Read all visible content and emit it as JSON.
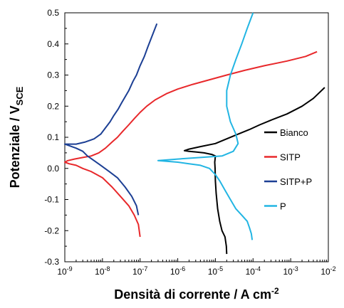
{
  "chart_data": {
    "type": "line",
    "xscale": "log",
    "xlim_exp": [
      -9,
      -2
    ],
    "ylim": [
      -0.3,
      0.5
    ],
    "ytick_values": [
      -0.3,
      -0.2,
      -0.1,
      0.0,
      0.1,
      0.2,
      0.3,
      0.4,
      0.5
    ],
    "ytick_labels": [
      "-0.3",
      "-0.2",
      "-0.1",
      "0.0",
      "0.1",
      "0.2",
      "0.3",
      "0.4",
      "0.5"
    ],
    "xtick_base": "10",
    "xtick_exponents": [
      "-9",
      "-8",
      "-7",
      "-6",
      "-5",
      "-4",
      "-3",
      "-2"
    ],
    "ylabel_main": "Potenziale / V",
    "ylabel_sub": "SCE",
    "xlabel_main": "Densità di corrente / A cm",
    "xlabel_sup": "-2",
    "legend_position": "right",
    "series": [
      {
        "name": "Bianco",
        "color": "#000000",
        "x": [
          2e-05,
          1.95e-05,
          1.8e-05,
          1.5e-05,
          1.3e-05,
          1.15e-05,
          1.05e-05,
          1e-05,
          9.8e-06,
          9.6e-06,
          9.8e-06,
          1e-05,
          8e-06,
          5e-06,
          3e-06,
          2e-06,
          1.5e-06,
          2e-06,
          4e-06,
          1e-05,
          2e-05,
          4e-05,
          8e-05,
          0.00015,
          0.0003,
          0.0008,
          0.002,
          0.004,
          0.008
        ],
        "y": [
          -0.275,
          -0.25,
          -0.22,
          -0.2,
          -0.17,
          -0.13,
          -0.08,
          -0.04,
          0.0,
          0.02,
          0.03,
          0.04,
          0.045,
          0.05,
          0.053,
          0.055,
          0.057,
          0.062,
          0.07,
          0.08,
          0.095,
          0.11,
          0.125,
          0.14,
          0.155,
          0.175,
          0.2,
          0.225,
          0.26
        ]
      },
      {
        "name": "SITP",
        "color": "#e8282b",
        "x": [
          1e-07,
          9e-08,
          7e-08,
          5e-08,
          3e-08,
          1.8e-08,
          1e-08,
          5e-09,
          3e-09,
          2e-09,
          1.3e-09,
          1e-09,
          1.2e-09,
          1.8e-09,
          3e-09,
          5e-09,
          8e-09,
          1.2e-08,
          1.8e-08,
          2.5e-08,
          3.5e-08,
          5e-08,
          7e-08,
          1e-07,
          1.5e-07,
          2.5e-07,
          5e-07,
          1e-06,
          2.5e-06,
          7e-06,
          2e-05,
          6e-05,
          0.0002,
          0.0008,
          0.0025,
          0.005
        ],
        "y": [
          -0.22,
          -0.18,
          -0.15,
          -0.12,
          -0.09,
          -0.06,
          -0.03,
          -0.01,
          0.0,
          0.01,
          0.015,
          0.02,
          0.025,
          0.03,
          0.035,
          0.04,
          0.05,
          0.065,
          0.085,
          0.1,
          0.12,
          0.14,
          0.16,
          0.18,
          0.2,
          0.22,
          0.24,
          0.255,
          0.27,
          0.285,
          0.3,
          0.315,
          0.33,
          0.345,
          0.36,
          0.375
        ]
      },
      {
        "name": "SITP+P",
        "color": "#1c3f94",
        "x": [
          9e-08,
          8e-08,
          6e-08,
          4e-08,
          2.5e-08,
          1.5e-08,
          9e-09,
          6e-09,
          4e-09,
          3e-09,
          2e-09,
          1e-09,
          2e-09,
          3.5e-09,
          6e-09,
          9e-09,
          1.2e-08,
          1.6e-08,
          2e-08,
          2.6e-08,
          3.2e-08,
          4e-08,
          5e-08,
          6.5e-08,
          8e-08,
          1e-07,
          1.3e-07,
          1.6e-07,
          2e-07,
          2.5e-07,
          2.8e-07
        ],
        "y": [
          -0.15,
          -0.12,
          -0.09,
          -0.06,
          -0.03,
          -0.01,
          0.01,
          0.025,
          0.04,
          0.055,
          0.065,
          0.078,
          0.078,
          0.085,
          0.095,
          0.11,
          0.13,
          0.15,
          0.17,
          0.19,
          0.21,
          0.23,
          0.25,
          0.28,
          0.3,
          0.33,
          0.36,
          0.39,
          0.42,
          0.45,
          0.465
        ]
      },
      {
        "name": "P",
        "color": "#22b5e3",
        "x": [
          9.5e-05,
          9e-05,
          8e-05,
          7e-05,
          5e-05,
          3.5e-05,
          2.5e-05,
          1.8e-05,
          1.3e-05,
          1e-05,
          7e-06,
          4e-06,
          2e-06,
          1e-06,
          3e-07,
          1e-06,
          4e-06,
          1.5e-05,
          3e-05,
          4e-05,
          3.5e-05,
          2.5e-05,
          2e-05,
          2e-05,
          2.5e-05,
          3.5e-05,
          5e-05,
          7e-05,
          0.0001
        ],
        "y": [
          -0.23,
          -0.21,
          -0.19,
          -0.17,
          -0.15,
          -0.13,
          -0.1,
          -0.07,
          -0.04,
          -0.02,
          0.0,
          0.01,
          0.015,
          0.02,
          0.025,
          0.03,
          0.035,
          0.04,
          0.055,
          0.08,
          0.11,
          0.15,
          0.2,
          0.25,
          0.3,
          0.35,
          0.4,
          0.45,
          0.5
        ]
      }
    ]
  }
}
